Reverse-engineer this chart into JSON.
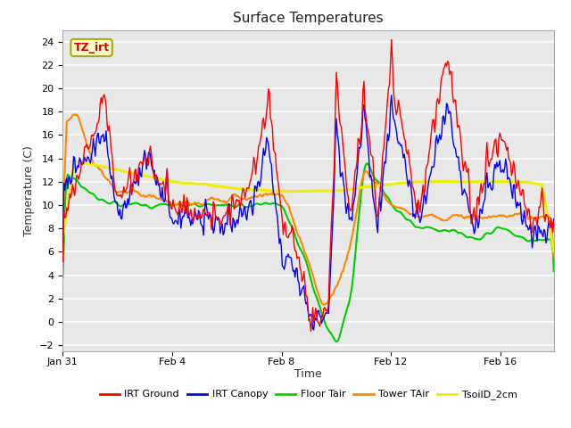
{
  "title": "Surface Temperatures",
  "xlabel": "Time",
  "ylabel": "Temperature (C)",
  "ylim": [
    -2.5,
    25
  ],
  "yticks": [
    -2,
    0,
    2,
    4,
    6,
    8,
    10,
    12,
    14,
    16,
    18,
    20,
    22,
    24
  ],
  "xtick_labels": [
    "Jan 31",
    "Feb 4",
    "Feb 8",
    "Feb 12",
    "Feb 16"
  ],
  "bg_color": "#e8e8e8",
  "line_colors": {
    "irt_ground": "#ff0000",
    "irt_canopy": "#0000ff",
    "floor_tair": "#00cc00",
    "tower_tair": "#ff8800",
    "tsoild_2cm": "#eeee00"
  },
  "legend_labels": [
    "IRT Ground",
    "IRT Canopy",
    "Floor Tair",
    "Tower TAir",
    "TsoilD_2cm"
  ],
  "annotation_text": "TZ_irt",
  "annotation_color": "#cc0000",
  "annotation_bg": "#ffffcc",
  "annotation_border": "#aaaa00"
}
